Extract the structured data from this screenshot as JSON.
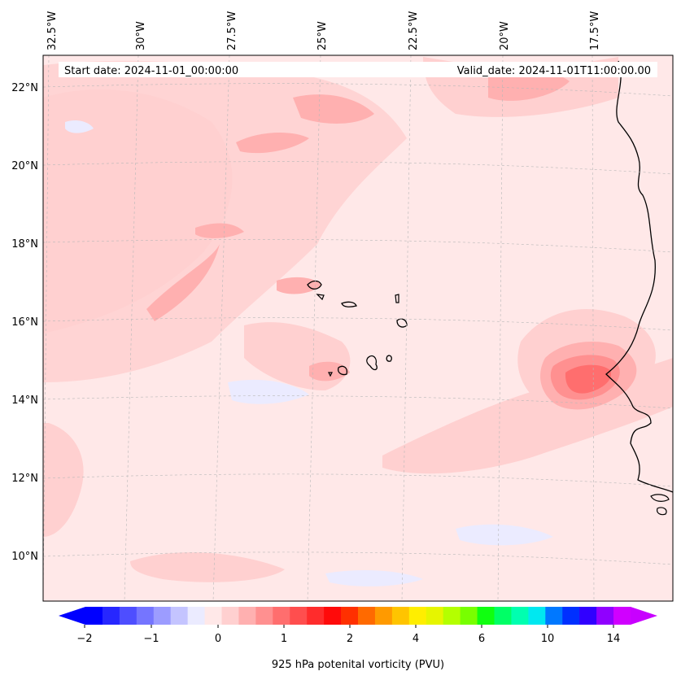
{
  "map": {
    "start_label": "Start date: 2024-11-01_00:00:00",
    "valid_label": "Valid_date: 2024-11-01T11:00:00.00",
    "lon_labels": [
      "32.5°W",
      "30°W",
      "27.5°W",
      "25°W",
      "22.5°W",
      "20°W",
      "17.5°W"
    ],
    "lat_labels": [
      "22°N",
      "20°N",
      "18°N",
      "16°N",
      "14°N",
      "12°N",
      "10°N"
    ]
  },
  "colorbar": {
    "title": "925 hPa potenital vorticity (PVU)",
    "tick_labels": [
      "−2",
      "−1",
      "0",
      "1",
      "2",
      "4",
      "6",
      "10",
      "14"
    ],
    "colors": [
      "#0000ff",
      "#2727ff",
      "#4e4eff",
      "#7575ff",
      "#9c9cff",
      "#c4c4ff",
      "#ebebff",
      "#ffe8e8",
      "#ffd0d0",
      "#ffb0b0",
      "#ff9090",
      "#ff6e6e",
      "#ff4e4e",
      "#ff2c2c",
      "#ff0a0a",
      "#ff3000",
      "#ff6a00",
      "#ff9a00",
      "#ffc400",
      "#ffee00",
      "#e6f500",
      "#b4ff00",
      "#78ff00",
      "#10ff10",
      "#00ff66",
      "#00ffb0",
      "#00e8f0",
      "#0078ff",
      "#0030ff",
      "#3000ff",
      "#9000ff",
      "#d000ff"
    ],
    "low_extend_color": "#0000ff",
    "high_extend_color": "#c800ff"
  }
}
